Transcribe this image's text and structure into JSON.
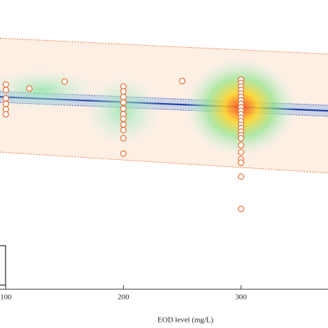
{
  "chart_data": {
    "type": "scatter",
    "x_label": "EOD level (mg/L)",
    "x": [
      100,
      100,
      100,
      100,
      100,
      100,
      120,
      150,
      200,
      200,
      200,
      200,
      200,
      200,
      200,
      200,
      200,
      200,
      200,
      250,
      300,
      300,
      300,
      300,
      300,
      300,
      300,
      300,
      300,
      300,
      300,
      300,
      300,
      300,
      300,
      300,
      300,
      300,
      300,
      300,
      300,
      300,
      300,
      300
    ],
    "values": [
      70.8,
      68.9,
      66.0,
      64.1,
      62.2,
      60.5,
      69.4,
      71.8,
      70.1,
      68.4,
      66.5,
      64.6,
      62.4,
      60.5,
      58.9,
      56.9,
      55.0,
      52.2,
      46.9,
      72.0,
      72.5,
      71.3,
      70.1,
      68.9,
      67.7,
      66.5,
      65.3,
      64.1,
      62.9,
      61.7,
      60.5,
      59.3,
      58.1,
      56.9,
      55.7,
      54.5,
      53.3,
      52.2,
      49.8,
      47.4,
      45.0,
      43.8,
      39.0,
      27.8
    ],
    "color": "#e8743b",
    "fit": {
      "x": [
        95,
        374
      ],
      "y": [
        66.5,
        61.7
      ],
      "color": "#1f3fa8",
      "ci_upper": [
        68.4,
        63.6
      ],
      "ci_lower": [
        64.6,
        59.8
      ],
      "pi_upper": [
        86.8,
        81.3
      ],
      "pi_lower": [
        47.4,
        40.2
      ]
    },
    "xlim": [
      95,
      374
    ],
    "ylim": [
      0,
      100
    ],
    "xticks": [
      100,
      200,
      300
    ]
  }
}
